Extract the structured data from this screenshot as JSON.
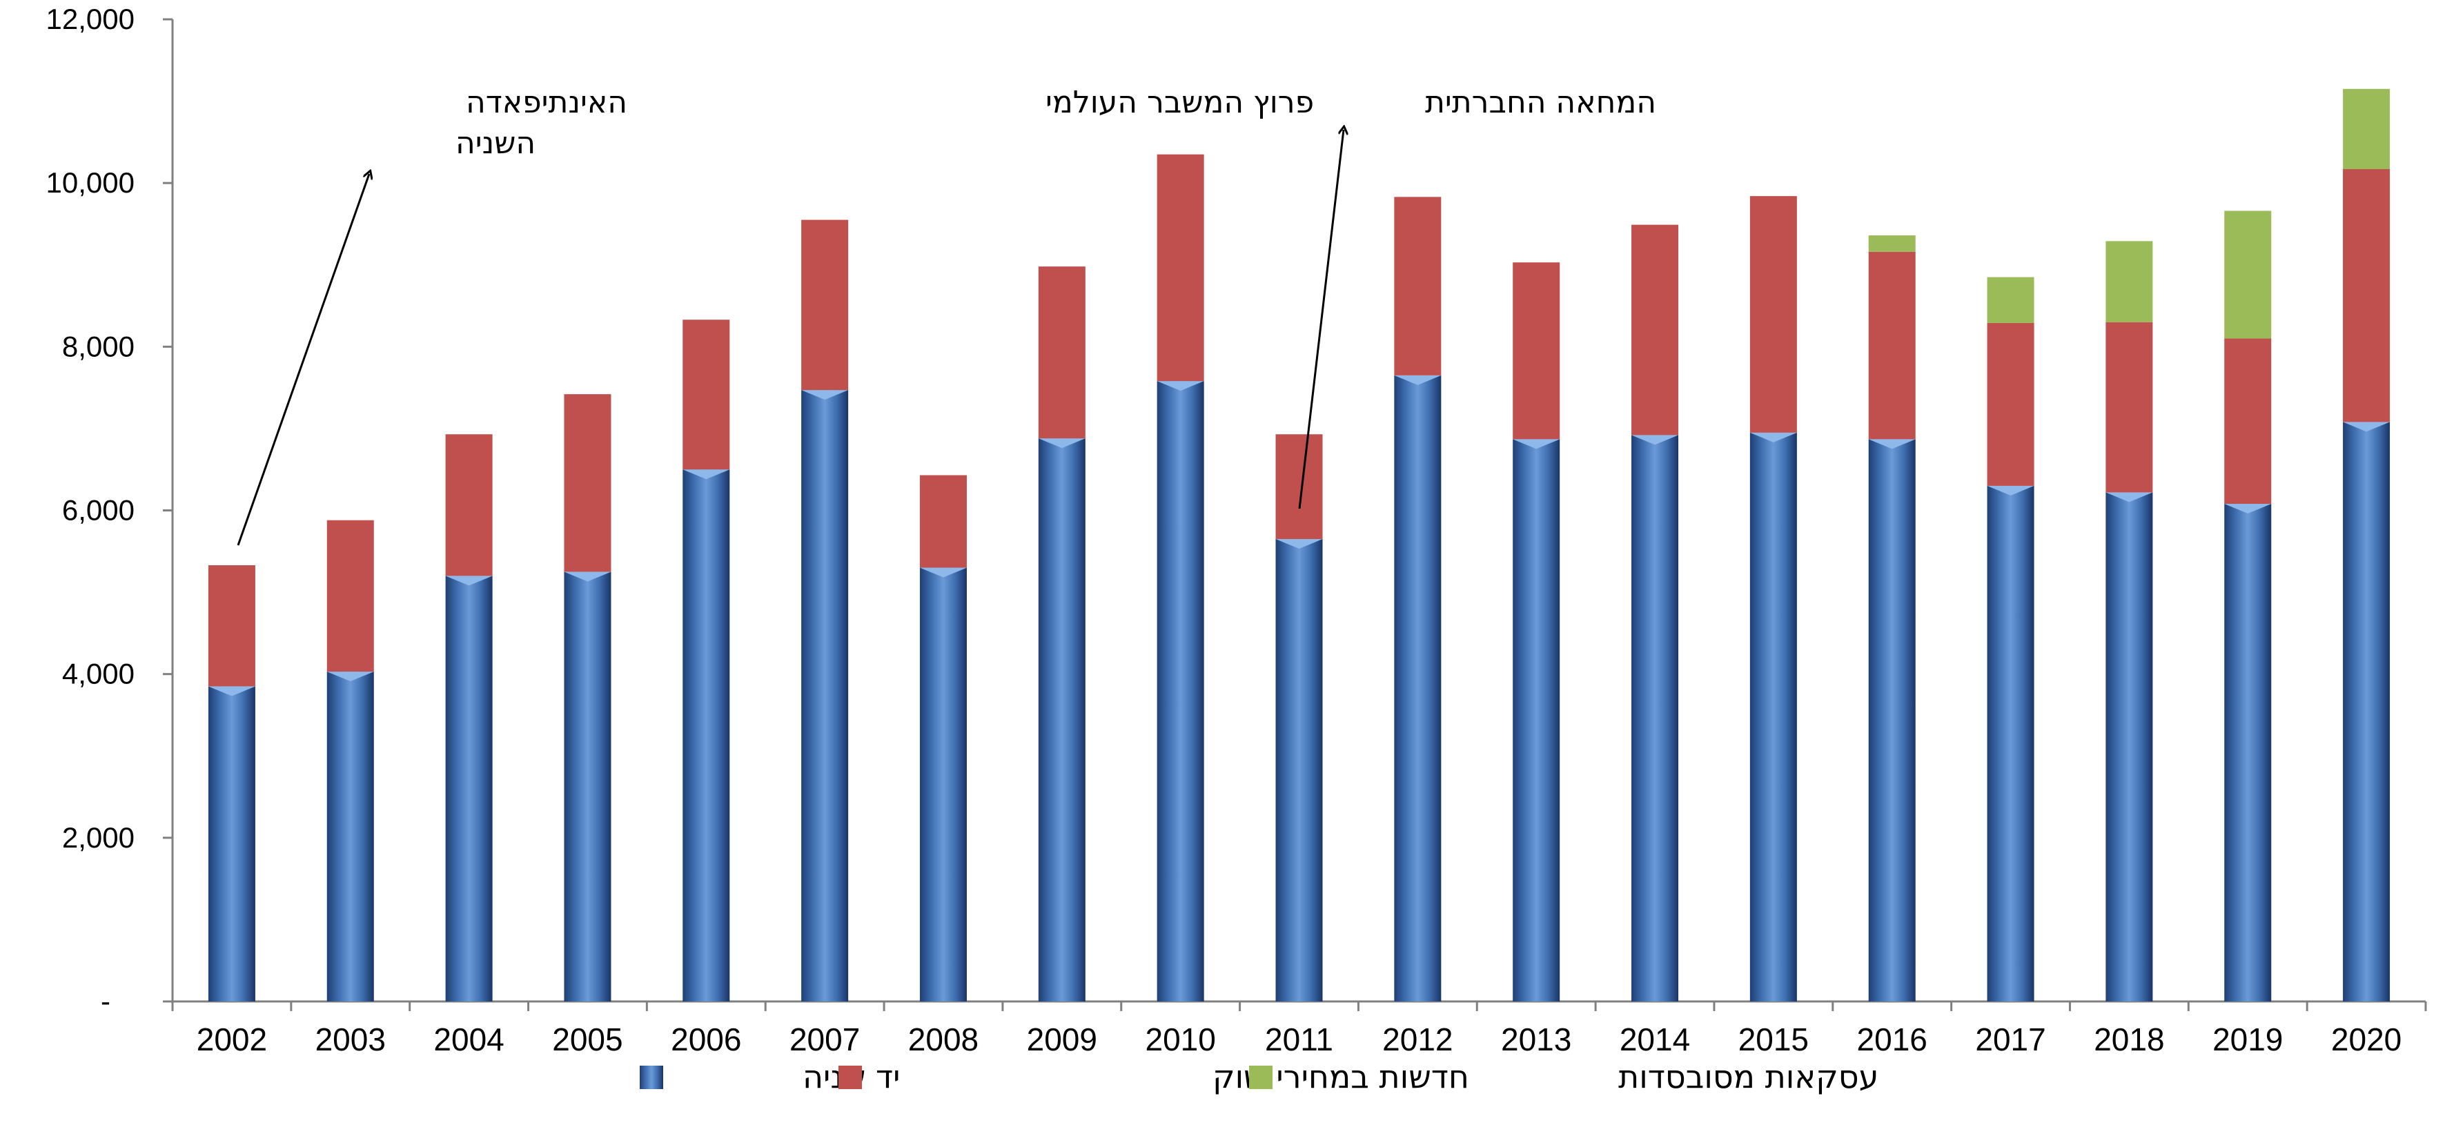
{
  "chart_data": {
    "type": "bar",
    "stacked": true,
    "categories": [
      "2002",
      "2003",
      "2004",
      "2005",
      "2006",
      "2007",
      "2008",
      "2009",
      "2010",
      "2011",
      "2012",
      "2013",
      "2014",
      "2015",
      "2016",
      "2017",
      "2018",
      "2019",
      "2020"
    ],
    "series": [
      {
        "name": "יד שניה",
        "color": "#4f81bd",
        "values": [
          3850,
          4030,
          5200,
          5250,
          6500,
          7470,
          5300,
          6880,
          7580,
          5650,
          7650,
          6870,
          6920,
          6950,
          6870,
          6300,
          6220,
          6080,
          7080
        ]
      },
      {
        "name": "חדשות במחירי שוק",
        "color": "#c0504d",
        "values": [
          1480,
          1850,
          1730,
          2170,
          1830,
          2080,
          1130,
          2100,
          2770,
          1280,
          2180,
          2160,
          2570,
          2890,
          2290,
          1990,
          2080,
          2020,
          3090
        ]
      },
      {
        "name": "עסקאות מסובסדות",
        "color": "#9bbb59",
        "values": [
          0,
          0,
          0,
          0,
          0,
          0,
          0,
          0,
          0,
          0,
          0,
          0,
          0,
          0,
          200,
          560,
          990,
          1560,
          980
        ]
      }
    ],
    "ylim": [
      0,
      12000
    ],
    "yticks": [
      {
        "value": 0,
        "label": "-"
      },
      {
        "value": 2000,
        "label": "2,000"
      },
      {
        "value": 4000,
        "label": "4,000"
      },
      {
        "value": 6000,
        "label": "6,000"
      },
      {
        "value": 8000,
        "label": "8,000"
      },
      {
        "value": 10000,
        "label": "10,000"
      },
      {
        "value": 12000,
        "label": "12,000"
      }
    ],
    "grid": false,
    "legend_position": "bottom",
    "annotations": [
      {
        "lines": [
          "האינתיפאדה",
          "השניה"
        ],
        "category": "2002"
      },
      {
        "lines": [
          "פרוץ המשבר העולמי"
        ],
        "category": "2008"
      },
      {
        "lines": [
          "המחאה החברתית"
        ],
        "category": "2011"
      }
    ]
  }
}
